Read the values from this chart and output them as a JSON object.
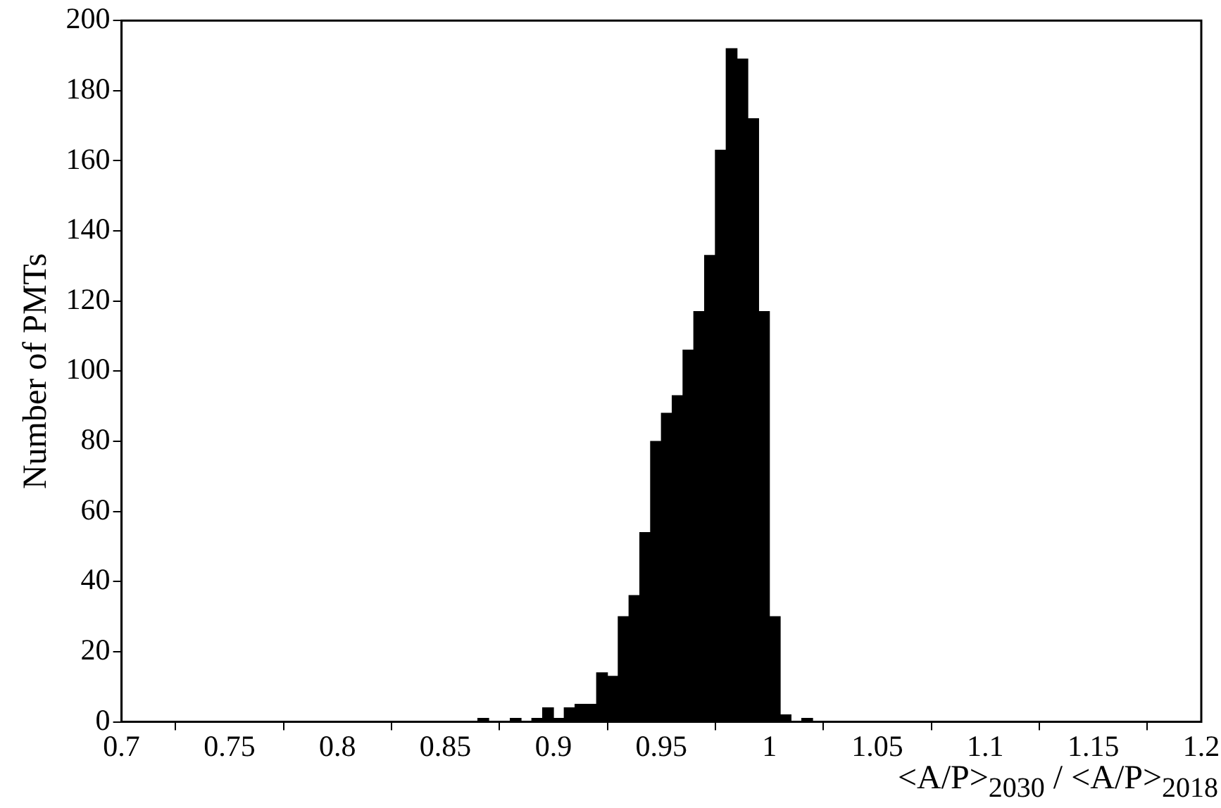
{
  "chart_data": {
    "type": "histogram",
    "xlabel": "<A/P>$_{2030}$ / <A/P>$_{2018}$",
    "ylabel": "Number of PMTs",
    "bins": [
      0.865,
      0.87,
      0.875,
      0.88,
      0.885,
      0.89,
      0.895,
      0.9,
      0.905,
      0.91,
      0.915,
      0.92,
      0.925,
      0.93,
      0.935,
      0.94,
      0.945,
      0.95,
      0.955,
      0.96,
      0.965,
      0.97,
      0.975,
      0.98,
      0.985,
      0.99,
      0.995,
      1.0,
      1.005,
      1.01,
      1.015,
      1.02,
      1.025
    ],
    "values": [
      1,
      0,
      0,
      1,
      0,
      1,
      4,
      1,
      4,
      5,
      5,
      14,
      13,
      30,
      36,
      54,
      80,
      88,
      93,
      106,
      117,
      133,
      163,
      192,
      189,
      172,
      117,
      30,
      2,
      0,
      1,
      0
    ],
    "color": "#000000",
    "xlim": [
      0.7,
      1.2
    ],
    "xticks": [
      0.7,
      0.75,
      0.8,
      0.85,
      0.9,
      0.95,
      1,
      1.05,
      1.1,
      1.15,
      1.2
    ],
    "ylim": [
      0,
      200
    ],
    "yticks": [
      0,
      20,
      40,
      60,
      80,
      100,
      120,
      140,
      160,
      180,
      200
    ],
    "grid": false,
    "legend": false
  }
}
